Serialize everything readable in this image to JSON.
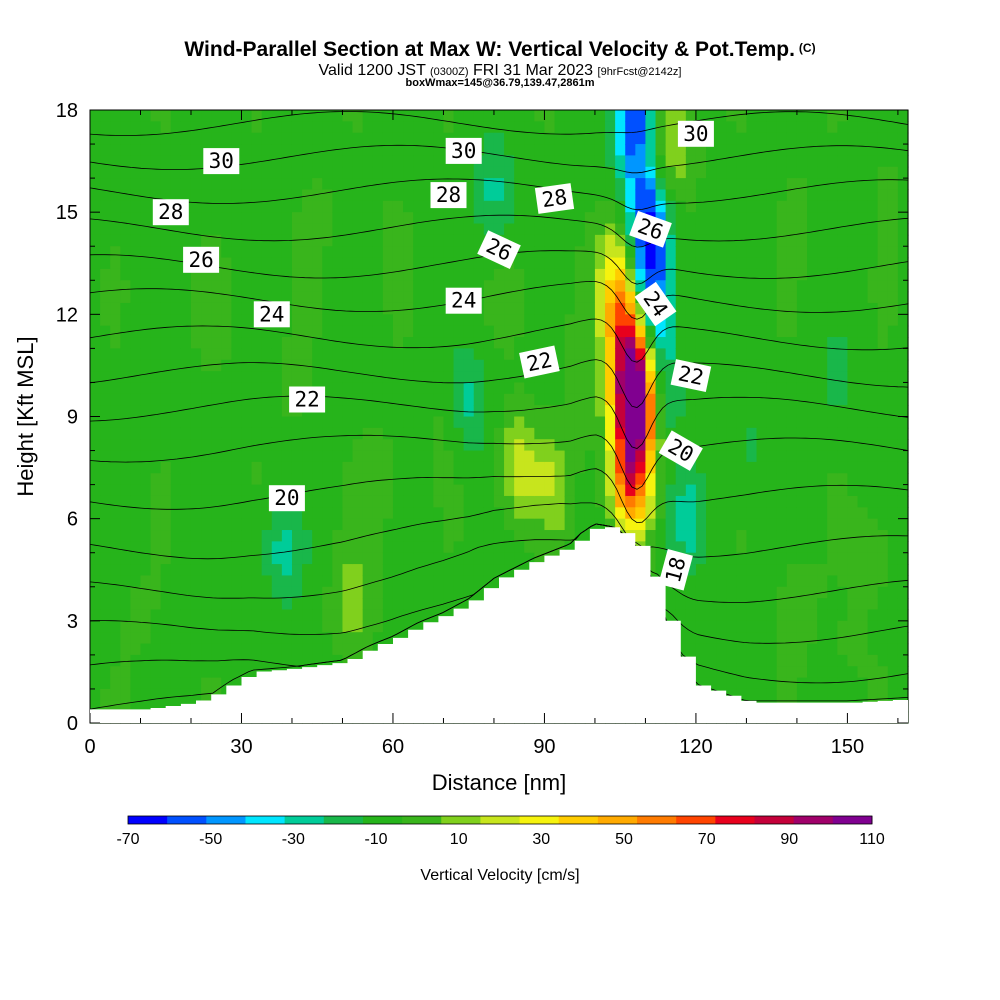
{
  "header": {
    "title": "Wind-Parallel Section at Max W: Vertical Velocity & Pot.Temp.",
    "copyright": "(C)",
    "valid_prefix": "Valid 1200 JST",
    "valid_utc": "(0300Z)",
    "valid_date": "FRI 31 Mar 2023",
    "forecast_info": "[9hrFcst@2142z]",
    "box_info": "boxWmax=145@36.79,139.47,2861m"
  },
  "chart_data": {
    "type": "heatmap",
    "xlabel": "Distance [nm]",
    "ylabel": "Height [Kft MSL]",
    "xlim": [
      0,
      162
    ],
    "ylim": [
      0,
      18
    ],
    "xticks": [
      0,
      30,
      60,
      90,
      120,
      150
    ],
    "yticks": [
      0,
      3,
      6,
      9,
      12,
      15,
      18
    ],
    "colorbar": {
      "label": "Vertical Velocity [cm/s]",
      "ticks": [
        -70,
        -50,
        -30,
        -10,
        10,
        30,
        50,
        70,
        90,
        110
      ],
      "levels": [
        -70,
        -60,
        -50,
        -40,
        -30,
        -20,
        -10,
        0,
        10,
        20,
        30,
        40,
        50,
        60,
        70,
        80,
        90,
        100,
        110
      ],
      "colors": [
        "#0000ff",
        "#0050ff",
        "#0096ff",
        "#00e6ff",
        "#00cc99",
        "#19b74a",
        "#26b41b",
        "#39b51c",
        "#80d01d",
        "#c7e51d",
        "#f6f30e",
        "#ffcc00",
        "#ffaa00",
        "#ff7b00",
        "#ff4400",
        "#e8001d",
        "#c4003a",
        "#a0006a",
        "#800090"
      ]
    },
    "background_velocity": 0,
    "velocity_features": [
      {
        "x": 15,
        "y": 13.5,
        "value": 5
      },
      {
        "x": 25,
        "y": 12,
        "value": 5
      },
      {
        "x": 40,
        "y": 10,
        "value": 5
      },
      {
        "x": 45,
        "y": 15,
        "value": 5
      },
      {
        "x": 60,
        "y": 14,
        "value": 5
      },
      {
        "x": 83,
        "y": 12.5,
        "value": 5
      },
      {
        "x": 70,
        "y": 9,
        "value": 5
      },
      {
        "x": 95,
        "y": 11,
        "value": 5
      },
      {
        "x": 100,
        "y": 9,
        "value": 5
      },
      {
        "x": 85,
        "y": 7.5,
        "value": 30
      },
      {
        "x": 92,
        "y": 7,
        "value": 20
      },
      {
        "x": 52,
        "y": 3.5,
        "value": 20
      },
      {
        "x": 58,
        "y": 7,
        "value": 10
      },
      {
        "x": 10,
        "y": 3,
        "value": 5
      },
      {
        "x": 38,
        "y": 5,
        "value": -20
      },
      {
        "x": 80,
        "y": 15.5,
        "value": -20
      },
      {
        "x": 75,
        "y": 9.5,
        "value": -20
      },
      {
        "x": 118,
        "y": 6,
        "value": -20
      },
      {
        "x": 140,
        "y": 3.5,
        "value": 10
      },
      {
        "x": 155,
        "y": 5,
        "value": 10
      },
      {
        "x": 150,
        "y": 2,
        "value": 5
      },
      {
        "x": 148,
        "y": 10,
        "value": -10
      },
      {
        "x": 130,
        "y": 8,
        "value": -10
      },
      {
        "x": 140,
        "y": 15,
        "value": 5
      },
      {
        "x": 158,
        "y": 16,
        "value": 5
      },
      {
        "x": 108,
        "y": 9,
        "value": 110
      },
      {
        "x": 107.5,
        "y": 10.5,
        "value": 90
      },
      {
        "x": 107,
        "y": 7,
        "value": 70
      },
      {
        "x": 105.5,
        "y": 12,
        "value": 50
      },
      {
        "x": 110,
        "y": 16.5,
        "value": 35
      },
      {
        "x": 116,
        "y": 17,
        "value": 25
      },
      {
        "x": 104,
        "y": 13.5,
        "value": 25
      },
      {
        "x": 108,
        "y": 17.5,
        "value": -70
      },
      {
        "x": 110,
        "y": 15.5,
        "value": -60
      },
      {
        "x": 111,
        "y": 13.5,
        "value": -50
      },
      {
        "x": 112,
        "y": 11.5,
        "value": -30
      },
      {
        "x": 113,
        "y": 9.5,
        "value": -20
      }
    ],
    "terrain": {
      "x": [
        0,
        10,
        20,
        25,
        28,
        32,
        40,
        50,
        55,
        60,
        65,
        70,
        75,
        80,
        88,
        95,
        97,
        100,
        104,
        108,
        111,
        114,
        116,
        118,
        120,
        124,
        130,
        140,
        150,
        162
      ],
      "y": [
        0.4,
        0.4,
        0.6,
        0.9,
        1.2,
        1.5,
        1.6,
        1.8,
        2.2,
        2.5,
        2.9,
        3.2,
        3.6,
        4.2,
        4.8,
        5.2,
        5.5,
        5.8,
        5.7,
        5.2,
        4.3,
        3.0,
        2.3,
        1.6,
        1.1,
        0.9,
        0.6,
        0.6,
        0.6,
        0.7
      ]
    },
    "isentropes": {
      "interval": 1,
      "values": [
        15,
        16,
        17,
        18,
        19,
        20,
        21,
        22,
        23,
        24,
        25,
        26,
        27,
        28,
        29,
        30,
        31
      ],
      "base_heights_kft": [
        0.3,
        1.4,
        2.6,
        3.8,
        5.1,
        6.6,
        8.0,
        9.2,
        10.2,
        11.3,
        12.4,
        13.4,
        14.5,
        15.6,
        16.6,
        17.6,
        18.6
      ]
    },
    "contour_labels": [
      {
        "text": "30",
        "x": 26,
        "y": 16.5,
        "angle": 0
      },
      {
        "text": "30",
        "x": 74,
        "y": 16.8,
        "angle": 0
      },
      {
        "text": "30",
        "x": 120,
        "y": 17.3,
        "angle": 0
      },
      {
        "text": "28",
        "x": 16,
        "y": 15,
        "angle": 0
      },
      {
        "text": "28",
        "x": 71,
        "y": 15.5,
        "angle": 0
      },
      {
        "text": "28",
        "x": 92,
        "y": 15.4,
        "angle": -8
      },
      {
        "text": "26",
        "x": 22,
        "y": 13.6,
        "angle": 0
      },
      {
        "text": "26",
        "x": 81,
        "y": 13.9,
        "angle": 25
      },
      {
        "text": "26",
        "x": 111,
        "y": 14.5,
        "angle": 20
      },
      {
        "text": "24",
        "x": 36,
        "y": 12,
        "angle": 0
      },
      {
        "text": "24",
        "x": 74,
        "y": 12.4,
        "angle": 0
      },
      {
        "text": "24",
        "x": 112,
        "y": 12.3,
        "angle": 55
      },
      {
        "text": "22",
        "x": 43,
        "y": 9.5,
        "angle": 0
      },
      {
        "text": "22",
        "x": 89,
        "y": 10.6,
        "angle": -12
      },
      {
        "text": "22",
        "x": 119,
        "y": 10.2,
        "angle": 12
      },
      {
        "text": "20",
        "x": 39,
        "y": 6.6,
        "angle": 0
      },
      {
        "text": "20",
        "x": 117,
        "y": 8,
        "angle": 30
      },
      {
        "text": "18",
        "x": 116,
        "y": 4.5,
        "angle": -75
      }
    ]
  }
}
